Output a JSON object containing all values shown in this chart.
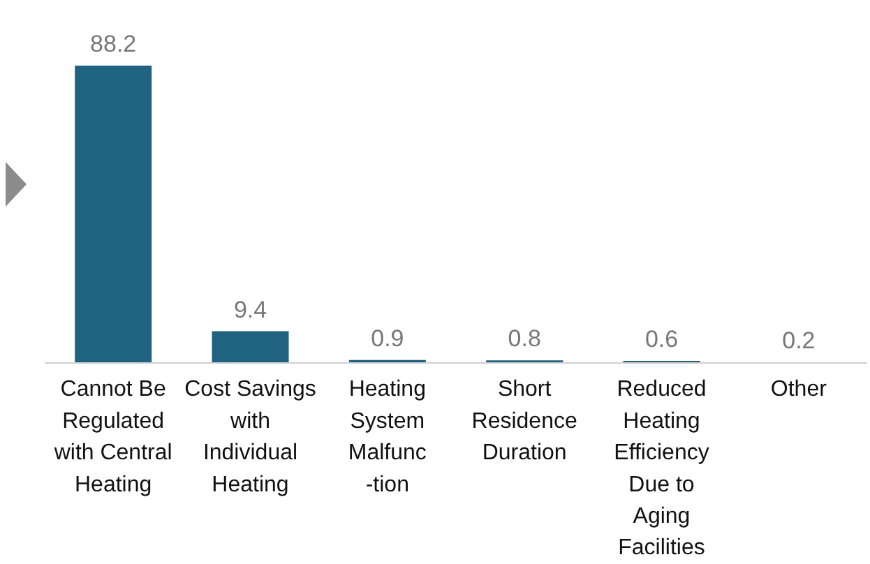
{
  "chart_data": {
    "type": "bar",
    "categories": [
      "Cannot Be\nRegulated\nwith Central\nHeating",
      "Cost Savings\nwith\nIndividual\nHeating",
      "Heating\nSystem\nMalfunc\n-tion",
      "Short\nResidence\nDuration",
      "Reduced\nHeating\nEfficiency\nDue to\nAging\nFacilities",
      "Other"
    ],
    "values": [
      88.2,
      9.4,
      0.9,
      0.8,
      0.6,
      0.2
    ],
    "color": "#1f6380",
    "data_labels": true
  }
}
